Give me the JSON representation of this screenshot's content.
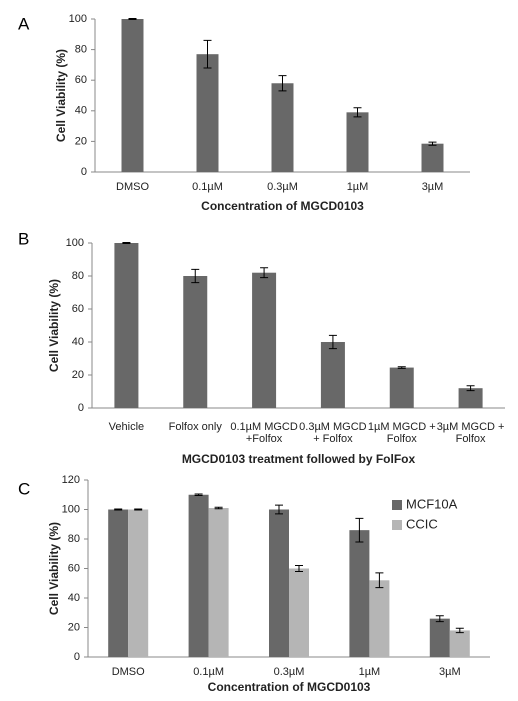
{
  "chart_data": [
    {
      "type": "bar",
      "panel": "A",
      "y_label": "Cell Viability (%)",
      "x_label": "Concentration of MGCD0103",
      "categories": [
        "DMSO",
        "0.1µM",
        "0.3µM",
        "1µM",
        "3µM"
      ],
      "series": [
        {
          "color": "#686868",
          "values": [
            100,
            77,
            58,
            39,
            18.5
          ],
          "errors": [
            0.3,
            9,
            5,
            3,
            1
          ]
        }
      ],
      "ylim": [
        0,
        100
      ],
      "yticks": [
        0,
        20,
        40,
        60,
        80,
        100
      ]
    },
    {
      "type": "bar",
      "panel": "B",
      "y_label": "Cell Viability (%)",
      "x_label": "MGCD0103  treatment  followed by FolFox",
      "categories": [
        "Vehicle",
        "Folfox only",
        "0.1µM MGCD\n+Folfox",
        "0.3µM MGCD\n+ Folfox",
        "1µM MGCD +\nFolfox",
        "3µM MGCD +\nFolfox"
      ],
      "series": [
        {
          "color": "#686868",
          "values": [
            100,
            80,
            82,
            40,
            24.5,
            12
          ],
          "errors": [
            0.3,
            4,
            3,
            4,
            0.5,
            1.5
          ]
        }
      ],
      "ylim": [
        0,
        100
      ],
      "yticks": [
        0,
        20,
        40,
        60,
        80,
        100
      ]
    },
    {
      "type": "bar",
      "panel": "C",
      "y_label": "Cell Viability (%)",
      "x_label": "Concentration of MGCD0103",
      "categories": [
        "DMSO",
        "0.1µM",
        "0.3µM",
        "1µM",
        "3µM"
      ],
      "series": [
        {
          "name": "MCF10A",
          "color": "#686868",
          "values": [
            100,
            110,
            100,
            86,
            26
          ],
          "errors": [
            0.3,
            0.5,
            3,
            8,
            2
          ]
        },
        {
          "name": "CCIC",
          "color": "#b5b5b5",
          "values": [
            100,
            101,
            60,
            52,
            18
          ],
          "errors": [
            0.3,
            0.5,
            2,
            5,
            1.5
          ]
        }
      ],
      "ylim": [
        0,
        120
      ],
      "yticks": [
        0,
        20,
        40,
        60,
        80,
        100,
        120
      ],
      "legend": "upper right"
    }
  ]
}
